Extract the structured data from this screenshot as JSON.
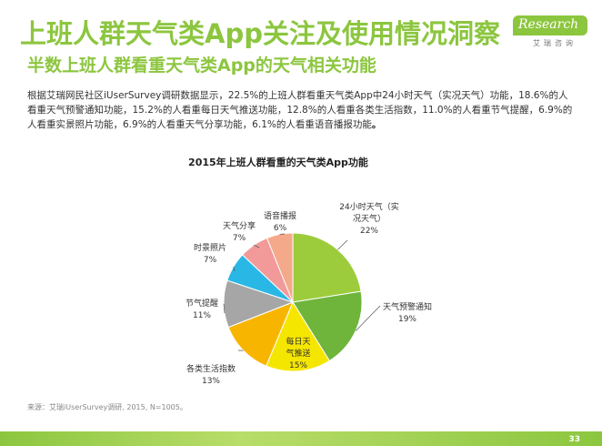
{
  "header": {
    "title": "上班人群天气类App关注及使用情况洞察",
    "subtitle": "半数上班人群看重天气类App的天气相关功能"
  },
  "logo": {
    "text": "Research",
    "cn": "艾瑞咨询"
  },
  "description": {
    "main": "根据艾瑞网民社区iUserSurvey调研数据显示，22.5%的上班人群看重天气类App中24小时天气（实况天气）功能，18.6%的人看重天气预警通知功能，15.2%的人看重每日天气推送功能，12.8%的人看重各类生活指数，11.0%的人看重节气提醒，6.9%的人看重实景照片功能，6.9%的人看重天气分享功能，6.1%的人看重语音播报功能",
    "end": "。"
  },
  "source": "来源：艾瑞iUserSurvey调研, 2015, N=1005。",
  "page_number": "33",
  "chart_data": {
    "type": "pie",
    "title": "2015年上班人群看重的天气类App功能",
    "slices": [
      {
        "label_lines": [
          "24小时天气（实",
          "况天气）"
        ],
        "pct": "22%",
        "value": 22.5,
        "color": "#9ccc3c"
      },
      {
        "label_lines": [
          "天气预警通知"
        ],
        "pct": "19%",
        "value": 18.6,
        "color": "#6fb53c"
      },
      {
        "label_lines": [
          "每日天",
          "气推送"
        ],
        "pct": "15%",
        "value": 15.2,
        "color": "#f5e600"
      },
      {
        "label_lines": [
          "各类生活指数"
        ],
        "pct": "13%",
        "value": 12.8,
        "color": "#f7b500"
      },
      {
        "label_lines": [
          "节气提醒"
        ],
        "pct": "11%",
        "value": 11.0,
        "color": "#a6a6a6"
      },
      {
        "label_lines": [
          "时景照片"
        ],
        "pct": "7%",
        "value": 6.9,
        "color": "#29b8e5"
      },
      {
        "label_lines": [
          "天气分享"
        ],
        "pct": "7%",
        "value": 6.9,
        "color": "#f29a9a"
      },
      {
        "label_lines": [
          "语音播报"
        ],
        "pct": "6%",
        "value": 6.1,
        "color": "#f4a98a"
      }
    ]
  }
}
